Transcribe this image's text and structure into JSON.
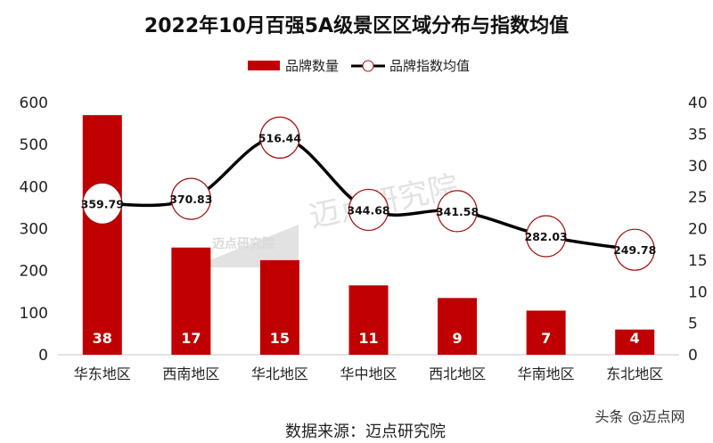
{
  "chart_data": {
    "type": "bar+line",
    "title": "2022年10月百强5A级景区区域分布与指数均值",
    "categories": [
      "华东地区",
      "西南地区",
      "华北地区",
      "华中地区",
      "西北地区",
      "华南地区",
      "东北地区"
    ],
    "series": [
      {
        "name": "品牌数量",
        "type": "bar",
        "axis": "right",
        "values": [
          38,
          17,
          15,
          11,
          9,
          7,
          4
        ],
        "color": "#C00000"
      },
      {
        "name": "品牌指数均值",
        "type": "line",
        "axis": "left",
        "values": [
          359.79,
          370.83,
          516.44,
          344.68,
          341.58,
          282.03,
          249.78
        ],
        "color": "#000000",
        "marker_edge": "#A01010"
      }
    ],
    "left_axis": {
      "range": [
        0,
        600
      ],
      "ticks": [
        0,
        100,
        200,
        300,
        400,
        500,
        600
      ]
    },
    "right_axis": {
      "range": [
        0,
        40
      ],
      "ticks": [
        0,
        5,
        10,
        15,
        20,
        25,
        30,
        35,
        40
      ]
    },
    "legend_position": "top",
    "grid": false
  },
  "source": "数据来源：迈点研究院",
  "watermark": "头条 @迈点网",
  "logo_watermark": "迈点研究院"
}
